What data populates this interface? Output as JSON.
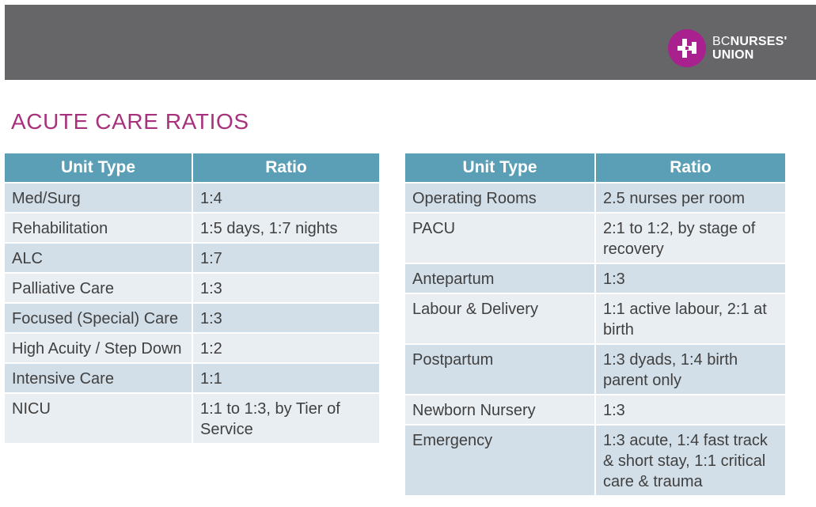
{
  "header": {
    "logo": {
      "line1_light": "BC",
      "line1_bold": "NURSES'",
      "line2": "UNION",
      "brand_color": "#a8218e"
    }
  },
  "page_title": "ACUTE CARE RATIOS",
  "tables": [
    {
      "headers": [
        "Unit Type",
        "Ratio"
      ],
      "rows": [
        {
          "unit": "Med/Surg",
          "ratio": "1:4"
        },
        {
          "unit": "Rehabilitation",
          "ratio": "1:5 days, 1:7 nights"
        },
        {
          "unit": "ALC",
          "ratio": "1:7"
        },
        {
          "unit": "Palliative Care",
          "ratio": "1:3"
        },
        {
          "unit": "Focused (Special) Care",
          "ratio": "1:3"
        },
        {
          "unit": "High Acuity / Step Down",
          "ratio": "1:2"
        },
        {
          "unit": "Intensive Care",
          "ratio": "1:1"
        },
        {
          "unit": "NICU",
          "ratio": "1:1 to 1:3, by Tier of Service"
        }
      ]
    },
    {
      "headers": [
        "Unit Type",
        "Ratio"
      ],
      "rows": [
        {
          "unit": "Operating Rooms",
          "ratio": "2.5 nurses per room"
        },
        {
          "unit": "PACU",
          "ratio": "2:1 to 1:2, by stage of recovery"
        },
        {
          "unit": "Antepartum",
          "ratio": "1:3"
        },
        {
          "unit": "Labour & Delivery",
          "ratio": "1:1 active labour, 2:1 at birth"
        },
        {
          "unit": "Postpartum",
          "ratio": "1:3 dyads, 1:4 birth parent only"
        },
        {
          "unit": "Newborn Nursery",
          "ratio": "1:3"
        },
        {
          "unit": "Emergency",
          "ratio": "1:3 acute, 1:4 fast track & short stay, 1:1 critical care & trauma"
        }
      ]
    }
  ]
}
